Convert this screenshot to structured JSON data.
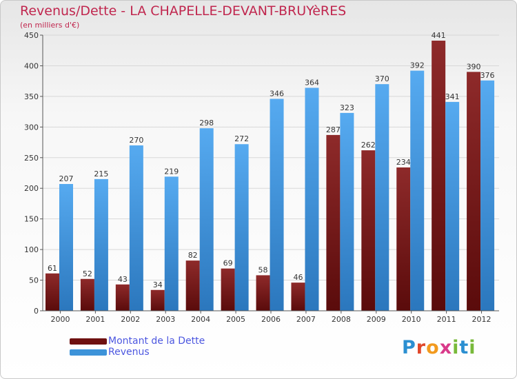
{
  "header": {
    "title": "Revenus/Dette - LA CHAPELLE-DEVANT-BRUYèRES",
    "subtitle": "(en milliers d'€)"
  },
  "chart_data": {
    "type": "bar",
    "title": "Revenus/Dette - LA CHAPELLE-DEVANT-BRUYèRES",
    "ylabel": "(en milliers d'€)",
    "categories": [
      "2000",
      "2001",
      "2002",
      "2003",
      "2004",
      "2005",
      "2006",
      "2007",
      "2008",
      "2009",
      "2010",
      "2011",
      "2012"
    ],
    "series": [
      {
        "name": "Montant de la Dette",
        "color": "#7a1a1a",
        "values": [
          61,
          52,
          43,
          34,
          82,
          69,
          58,
          46,
          287,
          262,
          234,
          441,
          390
        ]
      },
      {
        "name": "Revenus",
        "color": "#3d93d9",
        "values": [
          207,
          215,
          270,
          219,
          298,
          272,
          346,
          364,
          323,
          370,
          392,
          341,
          376
        ]
      }
    ],
    "ylim": [
      0,
      450
    ],
    "yticks": [
      0,
      50,
      100,
      150,
      200,
      250,
      300,
      350,
      400,
      450
    ],
    "grid": true,
    "legend": "bottom-left"
  },
  "logo": {
    "letters": [
      {
        "ch": "P",
        "color": "#2b8fd1"
      },
      {
        "ch": "r",
        "color": "#e0472a"
      },
      {
        "ch": "o",
        "color": "#f29a1e"
      },
      {
        "ch": "x",
        "color": "#d93a8a"
      },
      {
        "ch": "i",
        "color": "#78b93a"
      },
      {
        "ch": "t",
        "color": "#2b8fd1"
      },
      {
        "ch": "i",
        "color": "#78b93a"
      }
    ]
  }
}
